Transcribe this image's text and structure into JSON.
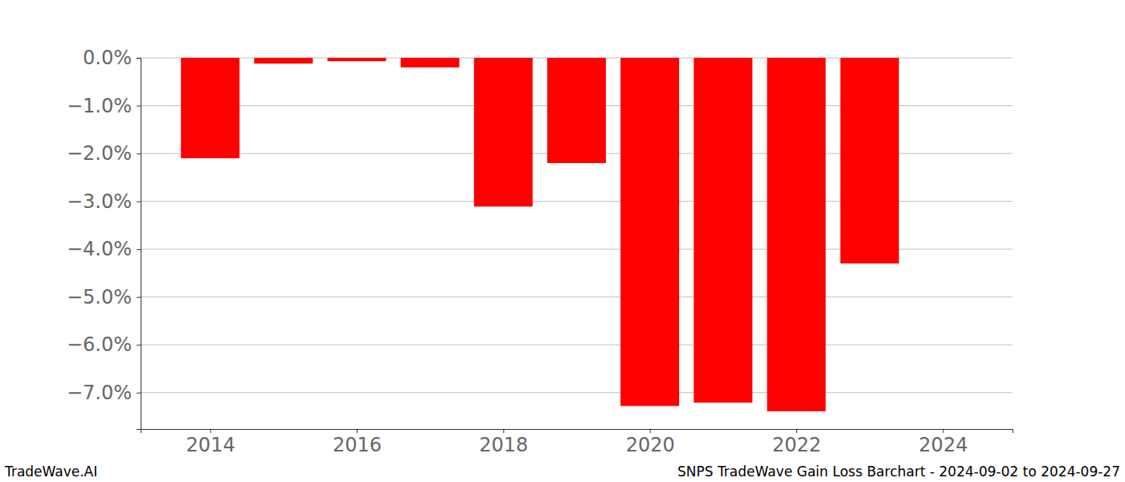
{
  "chart_data": {
    "type": "bar",
    "title": "SNPS TradeWave Gain Loss Barchart - 2024-09-02 to 2024-09-27",
    "watermark": "TradeWave.AI",
    "x": [
      2014,
      2015,
      2016,
      2017,
      2018,
      2019,
      2020,
      2021,
      2022,
      2023
    ],
    "values": [
      -2.1,
      -0.12,
      -0.07,
      -0.2,
      -3.11,
      -2.2,
      -7.28,
      -7.21,
      -7.39,
      -4.3
    ],
    "color": "#ff0000",
    "xlim": [
      2013.05,
      2024.95
    ],
    "xticks": [
      2014,
      2016,
      2018,
      2020,
      2022,
      2024
    ],
    "ylim": [
      -7.76,
      0
    ],
    "yticks": [
      {
        "value": 0,
        "label": "0.0%"
      },
      {
        "value": -1,
        "label": "−1.0%"
      },
      {
        "value": -2,
        "label": "−2.0%"
      },
      {
        "value": -3,
        "label": "−3.0%"
      },
      {
        "value": -4,
        "label": "−4.0%"
      },
      {
        "value": -5,
        "label": "−5.0%"
      },
      {
        "value": -6,
        "label": "−6.0%"
      },
      {
        "value": -7,
        "label": "−7.0%"
      }
    ],
    "grid": true
  }
}
